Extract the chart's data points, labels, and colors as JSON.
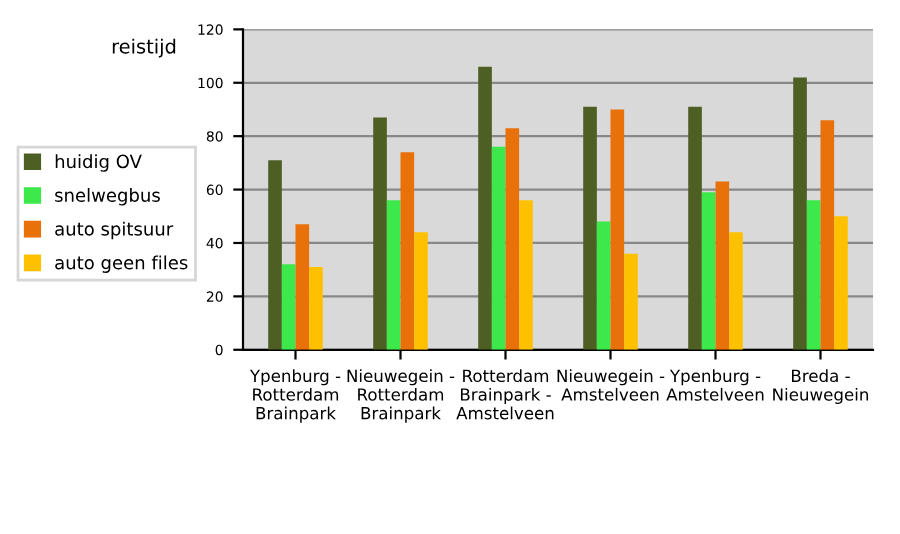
{
  "chart_data": {
    "type": "bar",
    "title": "reistijd",
    "categories": [
      "Ypenburg -\nRotterdam\nBrainpark",
      "Nieuwegein -\nRotterdam\nBrainpark",
      "Rotterdam\nBrainpark -\nAmstelveen",
      "Nieuwegein -\nAmstelveen",
      "Ypenburg -\nAmstelveen",
      "Breda -\nNieuwegein"
    ],
    "series": [
      {
        "name": "huidig OV",
        "color": "#4e5f24",
        "values": [
          71,
          87,
          106,
          91,
          91,
          102
        ]
      },
      {
        "name": "snelwegbus",
        "color": "#3de84a",
        "values": [
          32,
          56,
          76,
          48,
          59,
          56
        ]
      },
      {
        "name": "auto spitsuur",
        "color": "#e8710a",
        "values": [
          47,
          74,
          83,
          90,
          63,
          86
        ]
      },
      {
        "name": "auto geen files",
        "color": "#ffc000",
        "values": [
          31,
          44,
          56,
          36,
          44,
          50
        ]
      }
    ],
    "ylim": [
      0,
      120
    ],
    "yticks": [
      0,
      20,
      40,
      60,
      80,
      100,
      120
    ],
    "grid": "y",
    "legend": "left"
  }
}
